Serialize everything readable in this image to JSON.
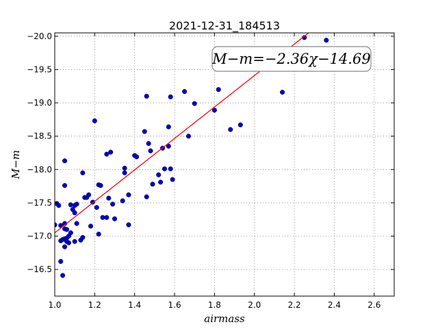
{
  "chart_data": {
    "type": "scatter",
    "title": "2021-12-31_184513",
    "xlabel": "airmass",
    "ylabel": "M−m",
    "xlim": [
      1.0,
      2.7
    ],
    "ylim": [
      -20.05,
      -16.1
    ],
    "y_inverted": true,
    "grid": true,
    "xticks": [
      1.0,
      1.2,
      1.4,
      1.6,
      1.8,
      2.0,
      2.2,
      2.4,
      2.6
    ],
    "xtick_labels": [
      "1.0",
      "1.2",
      "1.4",
      "1.6",
      "1.8",
      "2.0",
      "2.2",
      "2.4",
      "2.6"
    ],
    "yticks": [
      -16.5,
      -17.0,
      -17.5,
      -18.0,
      -18.5,
      -19.0,
      -19.5,
      -20.0
    ],
    "ytick_labels": [
      "−16.5",
      "−17.0",
      "−17.5",
      "−18.0",
      "−18.5",
      "−19.0",
      "−19.5",
      "−20.0"
    ],
    "annotation": "M−m=−2.36χ−14.69",
    "fit": {
      "slope": -2.36,
      "intercept": -14.69,
      "color": "#ff0000"
    },
    "point_color": "#0000cc",
    "points": [
      [
        1.0,
        -17.17
      ],
      [
        1.01,
        -17.49
      ],
      [
        1.02,
        -17.46
      ],
      [
        1.03,
        -17.16
      ],
      [
        1.03,
        -16.93
      ],
      [
        1.03,
        -16.62
      ],
      [
        1.04,
        -16.41
      ],
      [
        1.04,
        -16.95
      ],
      [
        1.05,
        -16.84
      ],
      [
        1.05,
        -16.96
      ],
      [
        1.05,
        -17.11
      ],
      [
        1.05,
        -17.19
      ],
      [
        1.05,
        -17.76
      ],
      [
        1.05,
        -18.13
      ],
      [
        1.06,
        -17.1
      ],
      [
        1.06,
        -16.97
      ],
      [
        1.06,
        -16.92
      ],
      [
        1.07,
        -16.9
      ],
      [
        1.07,
        -17.0
      ],
      [
        1.08,
        -17.47
      ],
      [
        1.08,
        -17.05
      ],
      [
        1.09,
        -17.4
      ],
      [
        1.1,
        -16.92
      ],
      [
        1.1,
        -17.35
      ],
      [
        1.1,
        -17.46
      ],
      [
        1.11,
        -17.48
      ],
      [
        1.11,
        -17.19
      ],
      [
        1.13,
        -16.94
      ],
      [
        1.14,
        -16.98
      ],
      [
        1.14,
        -17.95
      ],
      [
        1.15,
        -17.58
      ],
      [
        1.16,
        -17.58
      ],
      [
        1.17,
        -17.62
      ],
      [
        1.18,
        -17.15
      ],
      [
        1.19,
        -17.51
      ],
      [
        1.2,
        -18.73
      ],
      [
        1.21,
        -17.43
      ],
      [
        1.22,
        -17.03
      ],
      [
        1.22,
        -17.77
      ],
      [
        1.23,
        -17.76
      ],
      [
        1.24,
        -17.28
      ],
      [
        1.26,
        -17.28
      ],
      [
        1.26,
        -18.23
      ],
      [
        1.27,
        -17.57
      ],
      [
        1.28,
        -18.26
      ],
      [
        1.29,
        -17.48
      ],
      [
        1.3,
        -17.26
      ],
      [
        1.34,
        -17.53
      ],
      [
        1.35,
        -17.95
      ],
      [
        1.35,
        -18.02
      ],
      [
        1.37,
        -17.17
      ],
      [
        1.37,
        -17.62
      ],
      [
        1.4,
        -18.21
      ],
      [
        1.41,
        -18.19
      ],
      [
        1.45,
        -18.57
      ],
      [
        1.46,
        -19.1
      ],
      [
        1.46,
        -17.59
      ],
      [
        1.47,
        -18.39
      ],
      [
        1.48,
        -18.28
      ],
      [
        1.49,
        -17.78
      ],
      [
        1.52,
        -17.92
      ],
      [
        1.53,
        -17.81
      ],
      [
        1.54,
        -18.32
      ],
      [
        1.55,
        -18.01
      ],
      [
        1.57,
        -18.35
      ],
      [
        1.57,
        -18.64
      ],
      [
        1.58,
        -18.01
      ],
      [
        1.58,
        -19.09
      ],
      [
        1.59,
        -17.85
      ],
      [
        1.65,
        -19.17
      ],
      [
        1.67,
        -18.5
      ],
      [
        1.7,
        -18.99
      ],
      [
        1.8,
        -18.89
      ],
      [
        1.82,
        -19.2
      ],
      [
        1.88,
        -18.6
      ],
      [
        1.92,
        -19.74
      ],
      [
        1.93,
        -18.67
      ],
      [
        2.14,
        -19.16
      ],
      [
        2.25,
        -19.98
      ],
      [
        2.36,
        -19.94
      ],
      [
        2.48,
        -19.79
      ]
    ]
  }
}
